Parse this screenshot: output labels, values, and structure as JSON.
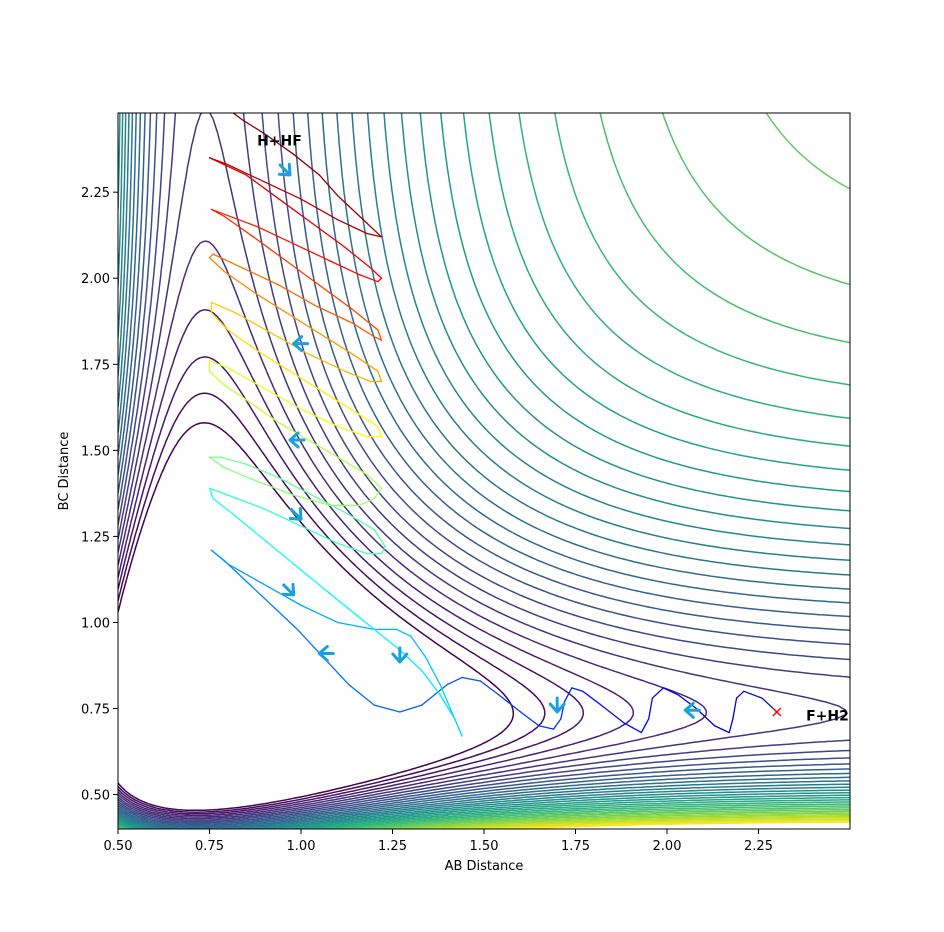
{
  "chart_data": {
    "type": "contour",
    "xlabel": "AB Distance",
    "ylabel": "BC Distance",
    "xlim": [
      0.5,
      2.5
    ],
    "ylim": [
      0.4,
      2.48
    ],
    "xticks": [
      "0.50",
      "0.75",
      "1.00",
      "1.25",
      "1.50",
      "1.75",
      "2.00",
      "2.25"
    ],
    "yticks": [
      "0.50",
      "0.75",
      "1.00",
      "1.25",
      "1.50",
      "1.75",
      "2.00",
      "2.25"
    ],
    "grid": false,
    "colormap": [
      "#440154",
      "#482878",
      "#3e4989",
      "#31688e",
      "#26828e",
      "#1f9e89",
      "#35b779",
      "#6ece58",
      "#b5de2b",
      "#fde725"
    ],
    "annotations": [
      {
        "text": "H+HF",
        "x": 0.88,
        "y": 2.4
      },
      {
        "text": "F+H2",
        "x": 2.38,
        "y": 0.73
      }
    ],
    "start_marker": {
      "x": 2.3,
      "y": 0.74,
      "symbol": "x",
      "color": "#ff0000"
    },
    "trajectory_color_from": "#00007f",
    "trajectory_color_to": "#7f0000",
    "trajectory": [
      [
        2.3,
        0.74
      ],
      [
        2.26,
        0.78
      ],
      [
        2.21,
        0.8
      ],
      [
        2.19,
        0.78
      ],
      [
        2.18,
        0.72
      ],
      [
        2.17,
        0.68
      ],
      [
        2.13,
        0.7
      ],
      [
        2.08,
        0.75
      ],
      [
        2.03,
        0.79
      ],
      [
        1.99,
        0.81
      ],
      [
        1.96,
        0.78
      ],
      [
        1.95,
        0.72
      ],
      [
        1.93,
        0.68
      ],
      [
        1.88,
        0.71
      ],
      [
        1.82,
        0.76
      ],
      [
        1.77,
        0.8
      ],
      [
        1.74,
        0.81
      ],
      [
        1.72,
        0.77
      ],
      [
        1.71,
        0.72
      ],
      [
        1.69,
        0.69
      ],
      [
        1.65,
        0.7
      ],
      [
        1.6,
        0.74
      ],
      [
        1.54,
        0.79
      ],
      [
        1.49,
        0.83
      ],
      [
        1.44,
        0.84
      ],
      [
        1.4,
        0.82
      ],
      [
        1.33,
        0.76
      ],
      [
        1.27,
        0.74
      ],
      [
        1.2,
        0.76
      ],
      [
        1.13,
        0.82
      ],
      [
        1.06,
        0.9
      ],
      [
        0.99,
        0.98
      ],
      [
        0.92,
        1.05
      ],
      [
        0.85,
        1.12
      ],
      [
        0.79,
        1.18
      ],
      [
        0.755,
        1.21
      ],
      [
        0.8,
        1.17
      ],
      [
        0.9,
        1.11
      ],
      [
        1.0,
        1.05
      ],
      [
        1.1,
        1.0
      ],
      [
        1.2,
        0.98
      ],
      [
        1.26,
        0.98
      ],
      [
        1.3,
        0.96
      ],
      [
        1.34,
        0.9
      ],
      [
        1.38,
        0.82
      ],
      [
        1.42,
        0.72
      ],
      [
        1.44,
        0.67
      ],
      [
        1.42,
        0.72
      ],
      [
        1.38,
        0.79
      ],
      [
        1.33,
        0.86
      ],
      [
        1.27,
        0.92
      ],
      [
        1.2,
        0.98
      ],
      [
        1.13,
        1.04
      ],
      [
        1.06,
        1.1
      ],
      [
        0.98,
        1.17
      ],
      [
        0.9,
        1.24
      ],
      [
        0.82,
        1.31
      ],
      [
        0.76,
        1.36
      ],
      [
        0.75,
        1.39
      ],
      [
        0.8,
        1.37
      ],
      [
        0.9,
        1.33
      ],
      [
        1.0,
        1.28
      ],
      [
        1.1,
        1.23
      ],
      [
        1.18,
        1.2
      ],
      [
        1.22,
        1.2
      ],
      [
        1.23,
        1.22
      ],
      [
        1.2,
        1.27
      ],
      [
        1.12,
        1.32
      ],
      [
        1.03,
        1.37
      ],
      [
        0.94,
        1.42
      ],
      [
        0.85,
        1.46
      ],
      [
        0.78,
        1.48
      ],
      [
        0.75,
        1.48
      ],
      [
        0.79,
        1.45
      ],
      [
        0.88,
        1.41
      ],
      [
        0.98,
        1.37
      ],
      [
        1.08,
        1.34
      ],
      [
        1.16,
        1.34
      ],
      [
        1.2,
        1.36
      ],
      [
        1.22,
        1.39
      ],
      [
        1.18,
        1.43
      ],
      [
        1.1,
        1.48
      ],
      [
        1.02,
        1.53
      ],
      [
        0.94,
        1.58
      ],
      [
        0.86,
        1.64
      ],
      [
        0.79,
        1.69
      ],
      [
        0.75,
        1.73
      ],
      [
        0.75,
        1.76
      ],
      [
        0.8,
        1.74
      ],
      [
        0.9,
        1.68
      ],
      [
        1.0,
        1.62
      ],
      [
        1.1,
        1.57
      ],
      [
        1.18,
        1.54
      ],
      [
        1.22,
        1.54
      ],
      [
        1.21,
        1.57
      ],
      [
        1.15,
        1.61
      ],
      [
        1.06,
        1.67
      ],
      [
        0.97,
        1.73
      ],
      [
        0.88,
        1.79
      ],
      [
        0.8,
        1.85
      ],
      [
        0.755,
        1.9
      ],
      [
        0.755,
        1.93
      ],
      [
        0.82,
        1.9
      ],
      [
        0.92,
        1.84
      ],
      [
        1.02,
        1.78
      ],
      [
        1.12,
        1.73
      ],
      [
        1.19,
        1.7
      ],
      [
        1.22,
        1.7
      ],
      [
        1.21,
        1.73
      ],
      [
        1.14,
        1.78
      ],
      [
        1.05,
        1.84
      ],
      [
        0.96,
        1.9
      ],
      [
        0.87,
        1.96
      ],
      [
        0.79,
        2.02
      ],
      [
        0.75,
        2.06
      ],
      [
        0.76,
        2.07
      ],
      [
        0.84,
        2.03
      ],
      [
        0.94,
        1.98
      ],
      [
        1.04,
        1.92
      ],
      [
        1.14,
        1.87
      ],
      [
        1.2,
        1.83
      ],
      [
        1.22,
        1.82
      ],
      [
        1.21,
        1.85
      ],
      [
        1.14,
        1.91
      ],
      [
        1.05,
        1.98
      ],
      [
        0.96,
        2.05
      ],
      [
        0.87,
        2.12
      ],
      [
        0.79,
        2.18
      ],
      [
        0.755,
        2.2
      ],
      [
        0.78,
        2.19
      ],
      [
        0.88,
        2.15
      ],
      [
        0.98,
        2.1
      ],
      [
        1.08,
        2.05
      ],
      [
        1.16,
        2.01
      ],
      [
        1.21,
        1.99
      ],
      [
        1.22,
        2.0
      ],
      [
        1.19,
        2.03
      ],
      [
        1.12,
        2.09
      ],
      [
        1.03,
        2.16
      ],
      [
        0.94,
        2.23
      ],
      [
        0.85,
        2.3
      ],
      [
        0.77,
        2.34
      ],
      [
        0.75,
        2.35
      ],
      [
        0.8,
        2.33
      ],
      [
        0.9,
        2.28
      ],
      [
        1.0,
        2.23
      ],
      [
        1.1,
        2.17
      ],
      [
        1.18,
        2.13
      ],
      [
        1.22,
        2.12
      ],
      [
        1.18,
        2.16
      ],
      [
        1.1,
        2.24
      ],
      [
        1.05,
        2.3
      ],
      [
        0.98,
        2.36
      ],
      [
        0.9,
        2.42
      ],
      [
        0.84,
        2.46
      ],
      [
        0.815,
        2.48
      ]
    ],
    "arrows": [
      {
        "x": 2.05,
        "y": 0.745,
        "dir": "left"
      },
      {
        "x": 1.7,
        "y": 0.74,
        "dir": "down"
      },
      {
        "x": 1.27,
        "y": 0.885,
        "dir": "down"
      },
      {
        "x": 1.05,
        "y": 0.91,
        "dir": "left"
      },
      {
        "x": 0.98,
        "y": 1.08,
        "dir": "down-right"
      },
      {
        "x": 1.0,
        "y": 1.3,
        "dir": "down-right"
      },
      {
        "x": 0.97,
        "y": 1.53,
        "dir": "left"
      },
      {
        "x": 0.98,
        "y": 1.81,
        "dir": "left"
      },
      {
        "x": 0.97,
        "y": 2.3,
        "dir": "down-right"
      }
    ],
    "arrow_color": "#1a9fe0"
  }
}
